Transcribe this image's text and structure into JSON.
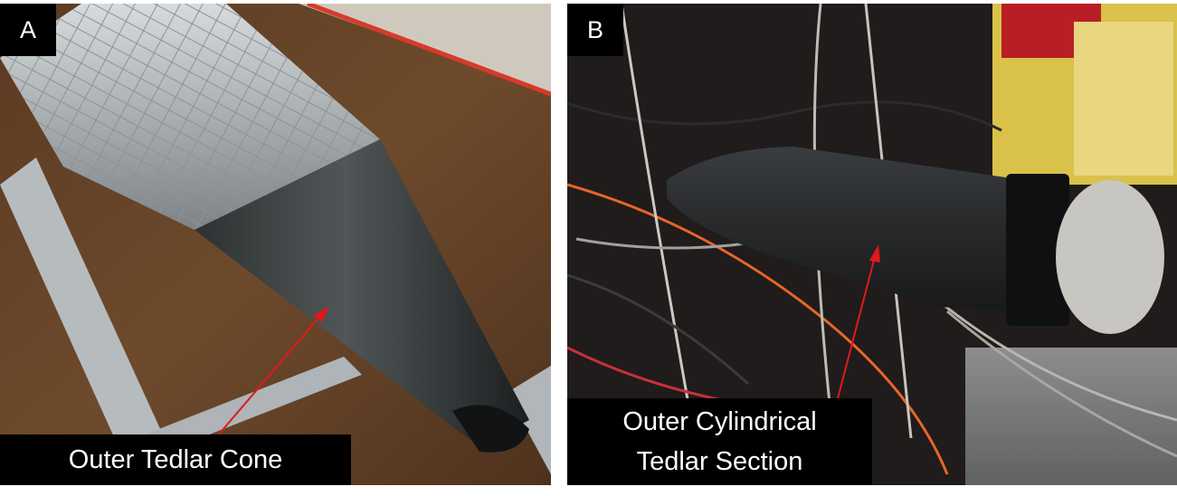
{
  "panels": {
    "a": {
      "letter": "A",
      "caption": "Outer Tedlar Cone"
    },
    "b": {
      "letter": "B",
      "caption_line1": "Outer Cylindrical",
      "caption_line2": "Tedlar Section"
    }
  },
  "colors": {
    "arrow": "#e11919",
    "label_bg": "#000000",
    "label_text": "#ffffff"
  }
}
